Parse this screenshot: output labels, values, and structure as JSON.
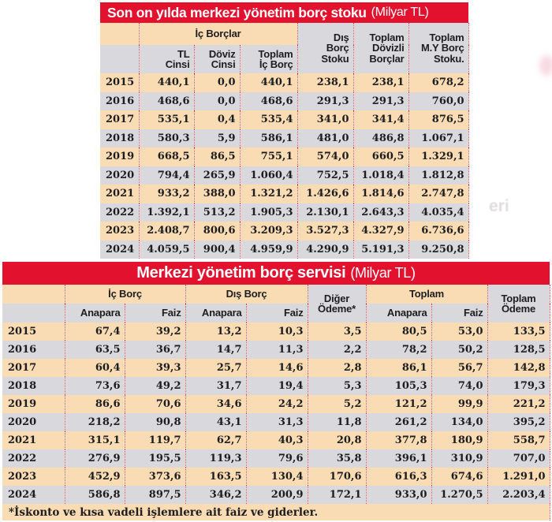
{
  "colors": {
    "bar_red": "#e2122f",
    "row_peach": "#fadcb4",
    "row_gray": "#d9d8dc",
    "divider_red": "#e2454a",
    "text_dark": "#1d1d1f"
  },
  "background_bleed_text": "eri",
  "chart_data": [
    {
      "type": "table",
      "title": "Son on yılda merkezi yönetim borç stoku",
      "unit": "(Milyar TL)",
      "group_header": "İç Borçlar",
      "sub_headers": [
        "TL\nCinsi",
        "Döviz\nCinsi",
        "Toplam\nİç Borç"
      ],
      "span_headers": [
        "Dış\nBorç\nStoku",
        "Toplam\nDövizli\nBorçlar",
        "Toplam\nM.Y Borç\nStoku."
      ],
      "rows": [
        {
          "year": "2015",
          "values": [
            "440,1",
            "0,0",
            "440,1",
            "238,1",
            "238,1",
            "678,2"
          ]
        },
        {
          "year": "2016",
          "values": [
            "468,6",
            "0,0",
            "468,6",
            "291,3",
            "291,3",
            "760,0"
          ]
        },
        {
          "year": "2017",
          "values": [
            "535,1",
            "0,4",
            "535,4",
            "341,0",
            "341,4",
            "876,5"
          ]
        },
        {
          "year": "2018",
          "values": [
            "580,3",
            "5,9",
            "586,1",
            "481,0",
            "486,8",
            "1.067,1"
          ]
        },
        {
          "year": "2019",
          "values": [
            "668,5",
            "86,5",
            "755,1",
            "574,0",
            "660,5",
            "1.329,1"
          ]
        },
        {
          "year": "2020",
          "values": [
            "794,4",
            "265,9",
            "1.060,4",
            "752,5",
            "1.018,4",
            "1.812,8"
          ]
        },
        {
          "year": "2021",
          "values": [
            "933,2",
            "388,0",
            "1.321,2",
            "1.426,6",
            "1.814,6",
            "2.747,8"
          ]
        },
        {
          "year": "2022",
          "values": [
            "1.392,1",
            "513,2",
            "1.905,3",
            "2.130,1",
            "2.643,3",
            "4.035,4"
          ]
        },
        {
          "year": "2023",
          "values": [
            "2.408,7",
            "800,6",
            "3.209,3",
            "3.527,3",
            "4.327,9",
            "6.736,6"
          ]
        },
        {
          "year": "2024",
          "values": [
            "4.059,5",
            "900,4",
            "4.959,9",
            "4.290,9",
            "5.191,3",
            "9.250,8"
          ]
        }
      ]
    },
    {
      "type": "table",
      "title": "Merkezi yönetim borç servisi",
      "unit": "(Milyar TL)",
      "group_headers": [
        "İç Borç",
        "Dış Borç",
        "Toplam"
      ],
      "span_headers": [
        "Diğer\nÖdeme*",
        "Toplam\nÖdeme"
      ],
      "sub_headers": [
        "Anapara",
        "Faiz",
        "Anapara",
        "Faiz",
        "Anapara",
        "Faiz"
      ],
      "rows": [
        {
          "year": "2015",
          "values": [
            "67,4",
            "39,2",
            "13,2",
            "10,3",
            "3,5",
            "80,5",
            "53,0",
            "133,5"
          ]
        },
        {
          "year": "2016",
          "values": [
            "63,5",
            "36,7",
            "14,7",
            "11,3",
            "2,2",
            "78,2",
            "50,2",
            "128,5"
          ]
        },
        {
          "year": "2017",
          "values": [
            "60,4",
            "39,3",
            "25,7",
            "14,6",
            "2,8",
            "86,1",
            "56,7",
            "142,8"
          ]
        },
        {
          "year": "2018",
          "values": [
            "73,6",
            "49,2",
            "31,7",
            "19,4",
            "5,3",
            "105,3",
            "74,0",
            "179,3"
          ]
        },
        {
          "year": "2019",
          "values": [
            "86,6",
            "70,6",
            "34,6",
            "24,2",
            "5,2",
            "121,2",
            "99,9",
            "221,2"
          ]
        },
        {
          "year": "2020",
          "values": [
            "218,2",
            "90,8",
            "43,1",
            "31,3",
            "11,8",
            "261,2",
            "134,0",
            "395,2"
          ]
        },
        {
          "year": "2021",
          "values": [
            "315,1",
            "119,7",
            "62,7",
            "40,3",
            "20,8",
            "377,8",
            "180,9",
            "558,7"
          ]
        },
        {
          "year": "2022",
          "values": [
            "276,9",
            "195,5",
            "119,3",
            "79,6",
            "35,8",
            "396,1",
            "310,9",
            "707,0"
          ]
        },
        {
          "year": "2023",
          "values": [
            "452,9",
            "373,6",
            "163,5",
            "130,4",
            "170,6",
            "616,3",
            "674,6",
            "1.291,0"
          ]
        },
        {
          "year": "2024",
          "values": [
            "586,8",
            "897,5",
            "346,2",
            "200,9",
            "172,1",
            "933,0",
            "1.270,5",
            "2.203,4"
          ]
        }
      ],
      "footnote": "*İskonto ve kısa vadeli işlemlere ait faiz ve giderler."
    }
  ]
}
